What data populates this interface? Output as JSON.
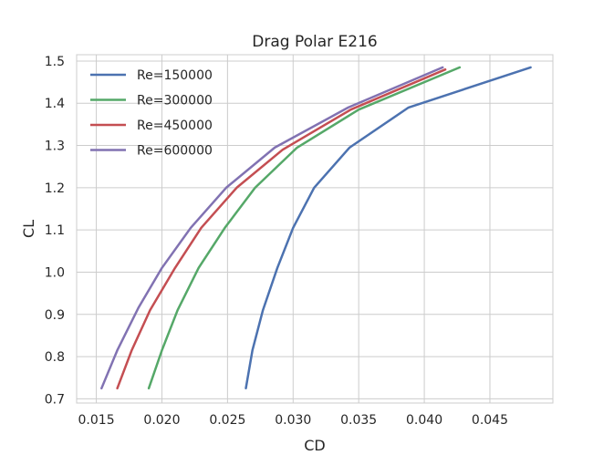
{
  "chart_data": {
    "type": "line",
    "title": "Drag Polar E216",
    "xlabel": "CD",
    "ylabel": "CL",
    "xlim": [
      0.0135,
      0.0498
    ],
    "ylim": [
      0.69,
      1.515
    ],
    "xticks": [
      0.015,
      0.02,
      0.025,
      0.03,
      0.035,
      0.04,
      0.045
    ],
    "xtick_labels": [
      "0.015",
      "0.020",
      "0.025",
      "0.030",
      "0.035",
      "0.040",
      "0.045"
    ],
    "yticks": [
      0.7,
      0.8,
      0.9,
      1.0,
      1.1,
      1.2,
      1.3,
      1.4,
      1.5
    ],
    "ytick_labels": [
      "0.7",
      "0.8",
      "0.9",
      "1.0",
      "1.1",
      "1.2",
      "1.3",
      "1.4",
      "1.5"
    ],
    "grid": true,
    "legend_position": "top-left",
    "series": [
      {
        "name": "Re=150000",
        "color": "#4c72b0",
        "x": [
          0.0264,
          0.0269,
          0.0277,
          0.0288,
          0.03,
          0.0316,
          0.0343,
          0.0388,
          0.0481
        ],
        "y": [
          0.725,
          0.815,
          0.91,
          1.01,
          1.105,
          1.2,
          1.295,
          1.39,
          1.485
        ]
      },
      {
        "name": "Re=300000",
        "color": "#55a868",
        "x": [
          0.019,
          0.02,
          0.0212,
          0.0228,
          0.0248,
          0.0271,
          0.0303,
          0.035,
          0.0427
        ],
        "y": [
          0.725,
          0.815,
          0.91,
          1.01,
          1.105,
          1.2,
          1.295,
          1.385,
          1.485
        ]
      },
      {
        "name": "Re=450000",
        "color": "#c44e52",
        "x": [
          0.0166,
          0.0177,
          0.0191,
          0.021,
          0.023,
          0.0257,
          0.0292,
          0.0344,
          0.0416
        ],
        "y": [
          0.725,
          0.815,
          0.91,
          1.01,
          1.105,
          1.2,
          1.29,
          1.385,
          1.48
        ]
      },
      {
        "name": "Re=600000",
        "color": "#8172b2",
        "x": [
          0.0154,
          0.0166,
          0.0182,
          0.02,
          0.0222,
          0.0249,
          0.0286,
          0.0342,
          0.0414
        ],
        "y": [
          0.725,
          0.815,
          0.915,
          1.01,
          1.105,
          1.2,
          1.295,
          1.39,
          1.485
        ]
      }
    ]
  }
}
